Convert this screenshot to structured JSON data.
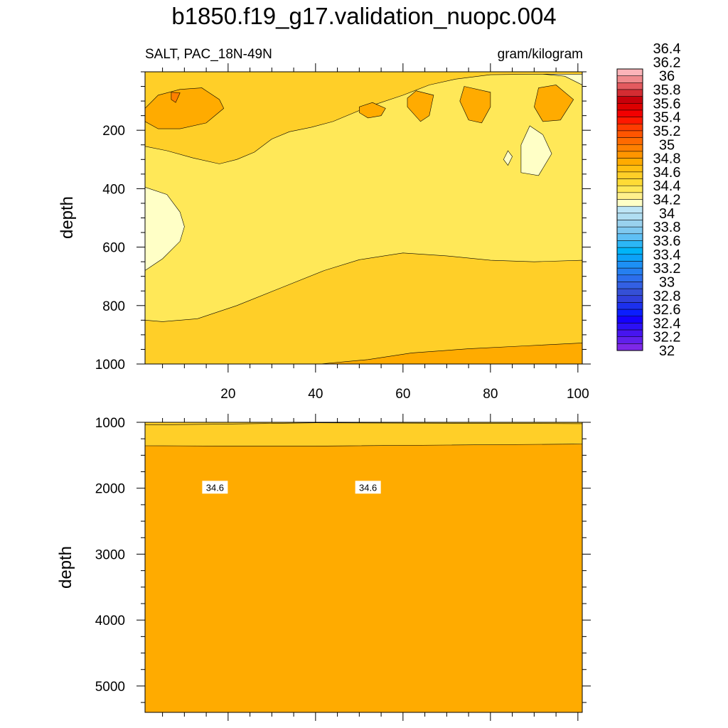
{
  "chart_data": {
    "type": "heatmap",
    "title": "b1850.f19_g17.validation_nuopc.004",
    "left_string": "SALT, PAC_18N-49N",
    "right_string": "gram/kilogram",
    "colorbar": {
      "labels": [
        "36.4",
        "36.2",
        "36",
        "35.8",
        "35.6",
        "35.4",
        "35.2",
        "35",
        "34.8",
        "34.6",
        "34.4",
        "34.2",
        "34",
        "33.8",
        "33.6",
        "33.4",
        "33.2",
        "33",
        "32.8",
        "32.6",
        "32.4",
        "32.2",
        "32"
      ],
      "colors": [
        "#fbb4b9",
        "#ef8a8d",
        "#e35a5f",
        "#d42c32",
        "#c8000a",
        "#dd0000",
        "#f20000",
        "#ff1800",
        "#ff3c00",
        "#ff5500",
        "#ff6a00",
        "#ff8000",
        "#ff9500",
        "#ffab00",
        "#ffbf10",
        "#ffcf28",
        "#ffdb35",
        "#ffe858",
        "#fff08c",
        "#ffffc6",
        "#bde5f5",
        "#b0def2",
        "#99d2ee",
        "#7fc9f0",
        "#5fc0f5",
        "#2cb6f6",
        "#00b4f8",
        "#0ca2f8",
        "#1d90f5",
        "#257ff0",
        "#2c6eec",
        "#3360e3",
        "#3550d6",
        "#3040db",
        "#1c30ee",
        "#0b1eff",
        "#1500ff",
        "#2c10f5",
        "#4715ef",
        "#6020eb",
        "#7d28e8"
      ]
    },
    "panels": [
      {
        "name": "upper",
        "ylabel": "depth",
        "xlim": [
          1,
          101
        ],
        "ylim": [
          0,
          1000
        ],
        "x_ticks": [
          20,
          40,
          60,
          80,
          100
        ],
        "y_ticks": [
          200,
          400,
          600,
          800,
          1000
        ],
        "background_value": 34.3,
        "regions": [
          {
            "value": 34.5,
            "points": [
              [
                1,
                850
              ],
              [
                5,
                855
              ],
              [
                13,
                845
              ],
              [
                22,
                800
              ],
              [
                32,
                740
              ],
              [
                42,
                680
              ],
              [
                50,
                643
              ],
              [
                60,
                620
              ],
              [
                70,
                630
              ],
              [
                80,
                645
              ],
              [
                90,
                650
              ],
              [
                101,
                645
              ],
              [
                101,
                1000
              ],
              [
                1,
                1000
              ]
            ]
          },
          {
            "value": 34.7,
            "points": [
              [
                41,
                1000
              ],
              [
                52,
                985
              ],
              [
                62,
                962
              ],
              [
                75,
                948
              ],
              [
                88,
                938
              ],
              [
                101,
                928
              ],
              [
                101,
                1000
              ]
            ]
          },
          {
            "value": 34.1,
            "points": [
              [
                1,
                395
              ],
              [
                6,
                420
              ],
              [
                9,
                480
              ],
              [
                10,
                530
              ],
              [
                9,
                580
              ],
              [
                5,
                640
              ],
              [
                1,
                680
              ]
            ]
          },
          {
            "value": 34.1,
            "points": [
              [
                44,
                0
              ],
              [
                101,
                0
              ],
              [
                101,
                45
              ],
              [
                97,
                15
              ],
              [
                90,
                5
              ],
              [
                78,
                5
              ],
              [
                62,
                5
              ],
              [
                44,
                5
              ]
            ]
          },
          {
            "value": 34.1,
            "points": [
              [
                89,
                185
              ],
              [
                92,
                215
              ],
              [
                94,
                280
              ],
              [
                91,
                355
              ],
              [
                87,
                345
              ],
              [
                87,
                250
              ]
            ]
          },
          {
            "value": 34.1,
            "points": [
              [
                84,
                270
              ],
              [
                85,
                290
              ],
              [
                84,
                320
              ],
              [
                83,
                300
              ]
            ]
          },
          {
            "value": 34.5,
            "points": [
              [
                1,
                255
              ],
              [
                6,
                270
              ],
              [
                12,
                295
              ],
              [
                18,
                315
              ],
              [
                22,
                300
              ],
              [
                26,
                275
              ],
              [
                30,
                230
              ],
              [
                34,
                205
              ],
              [
                39,
                190
              ],
              [
                44,
                170
              ],
              [
                52,
                120
              ],
              [
                60,
                80
              ],
              [
                66,
                45
              ],
              [
                72,
                25
              ],
              [
                80,
                10
              ],
              [
                90,
                8
              ],
              [
                101,
                8
              ],
              [
                101,
                0
              ],
              [
                1,
                0
              ]
            ]
          },
          {
            "value": 34.7,
            "points": [
              [
                1,
                125
              ],
              [
                4,
                80
              ],
              [
                9,
                60
              ],
              [
                14,
                55
              ],
              [
                18,
                95
              ],
              [
                19,
                125
              ],
              [
                15,
                175
              ],
              [
                9,
                195
              ],
              [
                4,
                195
              ],
              [
                1,
                170
              ]
            ]
          },
          {
            "value": 34.7,
            "points": [
              [
                53,
                105
              ],
              [
                56,
                125
              ],
              [
                55,
                150
              ],
              [
                52,
                158
              ],
              [
                50,
                140
              ],
              [
                50,
                120
              ]
            ]
          },
          {
            "value": 34.7,
            "points": [
              [
                63,
                65
              ],
              [
                67,
                80
              ],
              [
                66,
                150
              ],
              [
                64,
                170
              ],
              [
                61,
                120
              ],
              [
                61,
                90
              ]
            ]
          },
          {
            "value": 34.7,
            "points": [
              [
                74,
                50
              ],
              [
                80,
                70
              ],
              [
                80,
                120
              ],
              [
                78,
                175
              ],
              [
                75,
                165
              ],
              [
                73,
                100
              ]
            ]
          },
          {
            "value": 34.7,
            "points": [
              [
                91,
                55
              ],
              [
                95,
                45
              ],
              [
                99,
                95
              ],
              [
                96,
                165
              ],
              [
                92,
                170
              ],
              [
                90,
                120
              ]
            ]
          },
          {
            "value": 34.9,
            "points": [
              [
                7,
                70
              ],
              [
                9,
                72
              ],
              [
                8,
                105
              ],
              [
                7,
                95
              ]
            ]
          }
        ]
      },
      {
        "name": "lower",
        "ylabel": "depth",
        "ylim": [
          1000,
          5400
        ],
        "y_ticks": [
          1000,
          2000,
          3000,
          4000,
          5000
        ],
        "background_value": 34.7,
        "regions": [
          {
            "value": 34.5,
            "points": [
              [
                1,
                1000
              ],
              [
                101,
                1000
              ],
              [
                101,
                1330
              ],
              [
                70,
                1345
              ],
              [
                40,
                1360
              ],
              [
                20,
                1360
              ],
              [
                1,
                1355
              ]
            ]
          },
          {
            "value": 34.5,
            "points": [
              [
                1,
                1000
              ],
              [
                101,
                1000
              ],
              [
                101,
                1020
              ],
              [
                40,
                1008
              ],
              [
                15,
                1030
              ],
              [
                1,
                1040
              ]
            ]
          }
        ],
        "contour_labels": [
          {
            "text": "34.6",
            "x": 17,
            "y": 1985
          },
          {
            "text": "34.6",
            "x": 52,
            "y": 1985
          }
        ]
      }
    ]
  }
}
